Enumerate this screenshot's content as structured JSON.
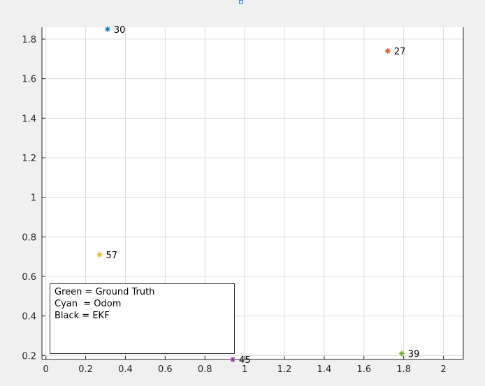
{
  "chart_data": {
    "type": "scatter",
    "title": "",
    "xlabel": "",
    "ylabel": "",
    "xlim": [
      -0.02,
      2.1
    ],
    "ylim": [
      0.18,
      1.86
    ],
    "x_ticks": [
      0,
      0.2,
      0.4,
      0.6,
      0.8,
      1,
      1.2,
      1.4,
      1.6,
      1.8,
      2
    ],
    "x_tick_labels": [
      "0",
      "0.2",
      "0.4",
      "0.6",
      "0.8",
      "1",
      "1.2",
      "1.4",
      "1.6",
      "1.8",
      "2"
    ],
    "y_ticks": [
      0.2,
      0.4,
      0.6,
      0.8,
      1,
      1.2,
      1.4,
      1.6,
      1.8
    ],
    "y_tick_labels": [
      "0.2",
      "0.4",
      "0.6",
      "0.8",
      "1",
      "1.2",
      "1.4",
      "1.6",
      "1.8"
    ],
    "grid": true,
    "points": [
      {
        "label": "30",
        "x": 0.31,
        "y": 1.85,
        "color": "#0072bd"
      },
      {
        "label": "27",
        "x": 1.72,
        "y": 1.74,
        "color": "#d95319"
      },
      {
        "label": "57",
        "x": 0.27,
        "y": 0.71,
        "color": "#edb120"
      },
      {
        "label": "45",
        "x": 0.94,
        "y": 0.18,
        "color": "#7e2f8e"
      },
      {
        "label": "39",
        "x": 1.79,
        "y": 0.21,
        "color": "#77ac30"
      }
    ]
  },
  "annotation": {
    "lines": [
      "Green = Ground Truth",
      "Cyan  = Odom",
      "Black = EKF"
    ]
  }
}
